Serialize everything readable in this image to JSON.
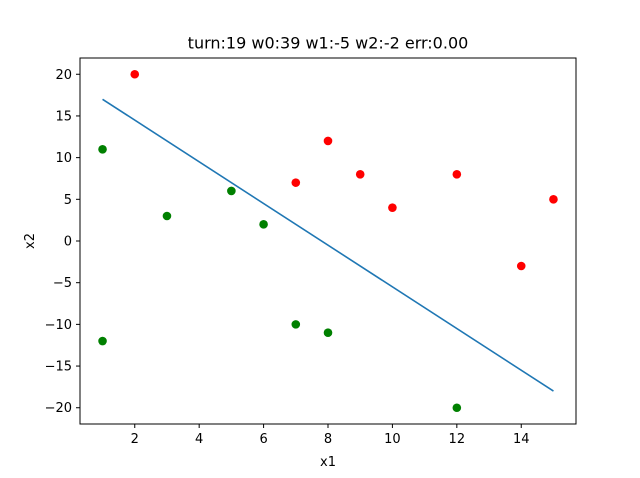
{
  "chart_data": {
    "type": "scatter",
    "title": "turn:19 w0:39 w1:-5 w2:-2 err:0.00",
    "xlabel": "x1",
    "ylabel": "x2",
    "xlim": [
      0.3,
      15.7
    ],
    "ylim": [
      -21.95,
      21.95
    ],
    "xticks": [
      2,
      4,
      6,
      8,
      10,
      12,
      14
    ],
    "xtick_labels": [
      "2",
      "4",
      "6",
      "8",
      "10",
      "12",
      "14"
    ],
    "yticks": [
      -20,
      -15,
      -10,
      -5,
      0,
      5,
      10,
      15,
      20
    ],
    "ytick_labels": [
      "−20",
      "−15",
      "−10",
      "−5",
      "0",
      "5",
      "10",
      "15",
      "20"
    ],
    "grid": false,
    "series": [
      {
        "color": "#ff0000",
        "points": [
          [
            2,
            20
          ],
          [
            7,
            7
          ],
          [
            8,
            12
          ],
          [
            9,
            8
          ],
          [
            10,
            4
          ],
          [
            12,
            8
          ],
          [
            14,
            -3
          ],
          [
            15,
            5
          ]
        ]
      },
      {
        "color": "#008000",
        "points": [
          [
            1,
            11
          ],
          [
            1,
            -12
          ],
          [
            3,
            3
          ],
          [
            5,
            6
          ],
          [
            6,
            2
          ],
          [
            7,
            -10
          ],
          [
            8,
            -11
          ],
          [
            12,
            -20
          ]
        ]
      }
    ],
    "line": {
      "color": "#1f77b4",
      "points": [
        [
          1,
          17
        ],
        [
          15,
          -18
        ]
      ]
    }
  }
}
